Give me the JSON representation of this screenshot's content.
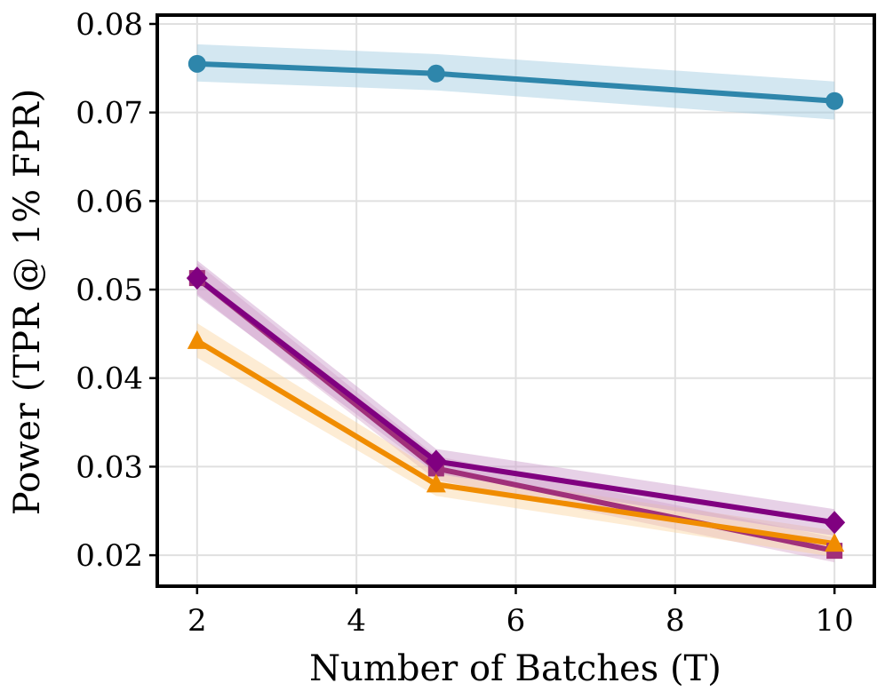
{
  "chart_data": {
    "type": "line",
    "xlabel": "Number of Batches (T)",
    "ylabel": "Power (TPR @ 1% FPR)",
    "x": [
      2,
      5,
      10
    ],
    "xlim": [
      1.5,
      10.5
    ],
    "ylim": [
      0.0165,
      0.081
    ],
    "xticks": [
      2,
      4,
      6,
      8,
      10
    ],
    "yticks": [
      0.02,
      0.03,
      0.04,
      0.05,
      0.06,
      0.07,
      0.08
    ],
    "xtick_labels": [
      "2",
      "4",
      "6",
      "8",
      "10"
    ],
    "ytick_labels": [
      "0.02",
      "0.03",
      "0.04",
      "0.05",
      "0.06",
      "0.07",
      "0.08"
    ],
    "grid": true,
    "series": [
      {
        "color": "#2e86ab",
        "band_color": "#9ecae1",
        "marker": "circle",
        "values": [
          0.0755,
          0.0744,
          0.0713
        ],
        "band_low": [
          0.0735,
          0.0725,
          0.0692
        ],
        "band_high": [
          0.0777,
          0.0766,
          0.0735
        ]
      },
      {
        "color": "#a0307a",
        "band_color": "#d8a6cc",
        "marker": "square",
        "values": [
          0.0513,
          0.0298,
          0.0205
        ],
        "band_low": [
          0.0495,
          0.0285,
          0.0192
        ],
        "band_high": [
          0.053,
          0.0312,
          0.022
        ]
      },
      {
        "color": "#f08c00",
        "band_color": "#fbd5a0",
        "marker": "triangle",
        "values": [
          0.0442,
          0.028,
          0.0213
        ],
        "band_low": [
          0.0423,
          0.0267,
          0.0198
        ],
        "band_high": [
          0.0462,
          0.0294,
          0.0228
        ]
      },
      {
        "color": "#800080",
        "band_color": "#c99ac9",
        "marker": "diamond",
        "values": [
          0.0513,
          0.0306,
          0.0237
        ],
        "band_low": [
          0.0493,
          0.0292,
          0.0222
        ],
        "band_high": [
          0.0533,
          0.032,
          0.0252
        ]
      }
    ]
  }
}
